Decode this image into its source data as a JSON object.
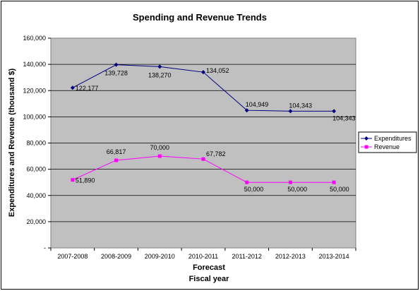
{
  "chart_data": {
    "type": "line",
    "title": "Spending and Revenue Trends",
    "ylabel": "Expenditures and Revenue (thousand $)",
    "xlabel": "Fiscal year",
    "x_group_label": "Forecast",
    "categories": [
      "2007-2008",
      "2008-2009",
      "2009-2010",
      "2010-2011",
      "2011-2012",
      "2012-2013",
      "2013-2014"
    ],
    "y_ticks": [
      "-",
      "20,000",
      "40,000",
      "60,000",
      "80,000",
      "100,000",
      "120,000",
      "140,000",
      "160,000"
    ],
    "ylim": [
      0,
      160000
    ],
    "grid": true,
    "legend_position": "right",
    "series": [
      {
        "name": "Expenditures",
        "color": "#000080",
        "marker": "diamond",
        "values": [
          122177,
          139728,
          138270,
          134052,
          104949,
          104343,
          104343
        ],
        "labels": [
          "122,177",
          "139,728",
          "138,270",
          "134,052",
          "104,949",
          "104,343",
          "104,343"
        ]
      },
      {
        "name": "Revenue",
        "color": "#ff00ff",
        "marker": "square",
        "values": [
          51890,
          66817,
          70000,
          67782,
          50000,
          50000,
          50000
        ],
        "labels": [
          "51,890",
          "66,817",
          "70,000",
          "67,782",
          "50,000",
          "50,000",
          "50,000"
        ]
      }
    ],
    "plot_background": "#c0c0c0"
  }
}
